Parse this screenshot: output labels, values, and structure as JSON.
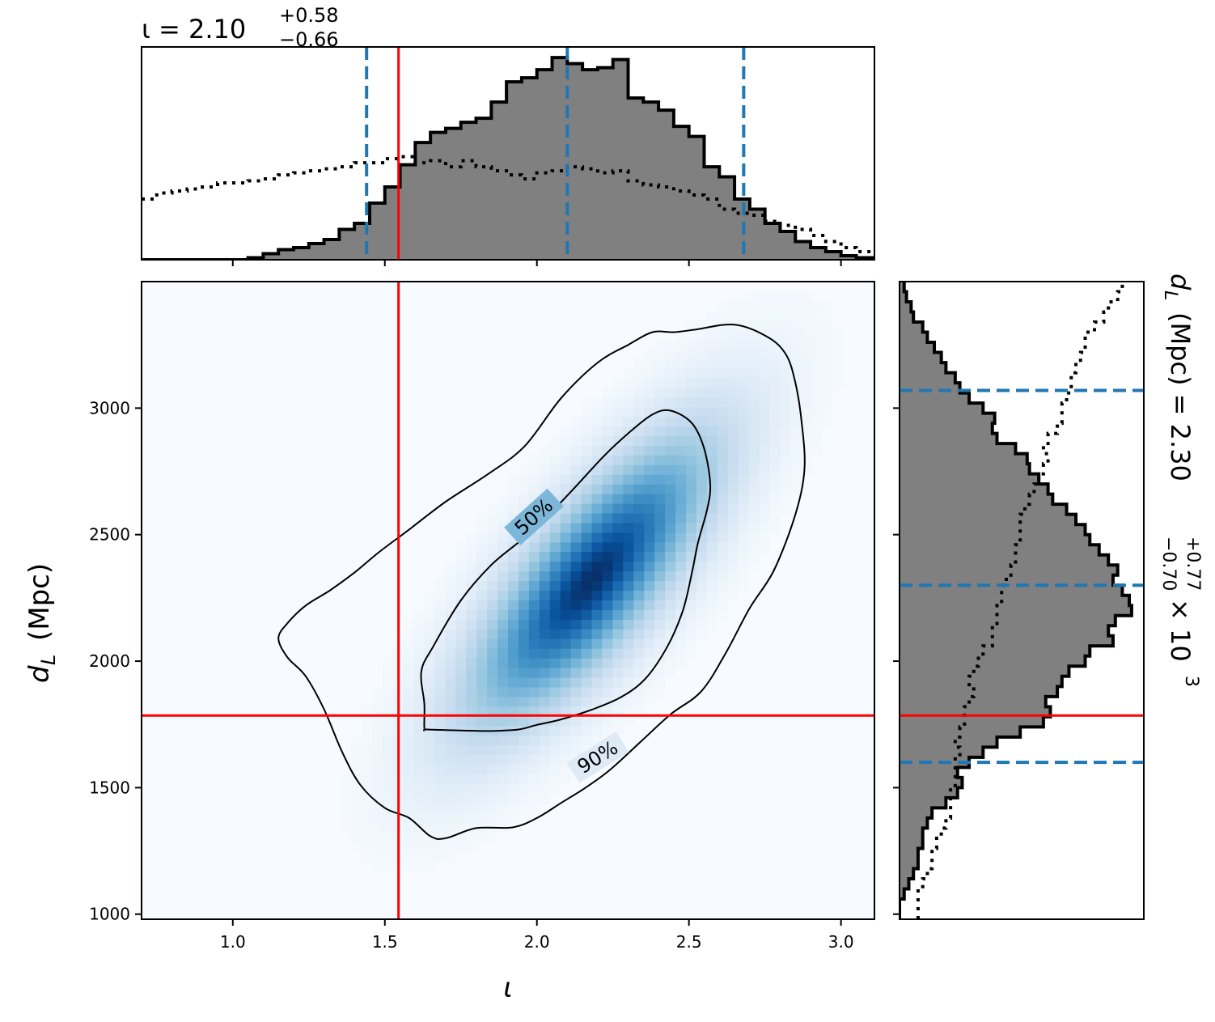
{
  "chart_data": {
    "type": "corner",
    "colors": {
      "posterior_fill": "#808080",
      "posterior_edge": "#000000",
      "prior_line": "#000000",
      "quantile_line": "#1f77b4",
      "injection_line": "#ff0000",
      "density_cmap_low": "#f7fbff",
      "density_cmap_high": "#08306b",
      "contour_line": "#000000"
    },
    "parameters": {
      "iota": {
        "symbol": "ι",
        "median": "2.10",
        "plus": "+0.58",
        "minus": "−0.66",
        "injection": 1.545,
        "quantiles": [
          1.44,
          2.1,
          2.68
        ],
        "range": [
          0.7,
          3.11
        ],
        "ticks": [
          1.0,
          1.5,
          2.0,
          2.5,
          3.0
        ],
        "tick_labels": [
          "1.0",
          "1.5",
          "2.0",
          "2.5",
          "3.0"
        ],
        "title_prefix": "ι = 2.10",
        "xlabel": "ι"
      },
      "dL": {
        "median": "2.30",
        "plus": "+0.77",
        "minus": "−0.70",
        "injection": 1785,
        "quantiles": [
          1600,
          2300,
          3070
        ],
        "range": [
          980,
          3500
        ],
        "ticks": [
          1000,
          1500,
          2000,
          2500,
          3000
        ],
        "tick_labels": [
          "1000",
          "1500",
          "2000",
          "2500",
          "3000"
        ],
        "ylabel": "(Mpc)",
        "ylabel_symbol_d": "d",
        "ylabel_symbol_sub": "L",
        "title_prefix": "(Mpc) = 2.30",
        "title_suffix": "× 10",
        "title_exp": "3"
      }
    },
    "iota_hist": {
      "edges": [
        0.7,
        0.75,
        0.8,
        0.85,
        0.9,
        0.95,
        1.0,
        1.05,
        1.1,
        1.15,
        1.2,
        1.25,
        1.3,
        1.35,
        1.4,
        1.45,
        1.5,
        1.55,
        1.6,
        1.65,
        1.7,
        1.75,
        1.8,
        1.85,
        1.9,
        1.95,
        2.0,
        2.05,
        2.1,
        2.15,
        2.2,
        2.25,
        2.3,
        2.35,
        2.4,
        2.45,
        2.5,
        2.55,
        2.6,
        2.65,
        2.7,
        2.75,
        2.8,
        2.85,
        2.9,
        2.95,
        3.0,
        3.05,
        3.11
      ],
      "posterior": [
        0,
        0,
        0,
        0,
        0,
        0,
        0,
        0.01,
        0.03,
        0.05,
        0.06,
        0.08,
        0.1,
        0.15,
        0.18,
        0.28,
        0.36,
        0.47,
        0.58,
        0.63,
        0.65,
        0.68,
        0.7,
        0.78,
        0.88,
        0.9,
        0.94,
        1.0,
        0.97,
        0.94,
        0.95,
        0.99,
        0.8,
        0.78,
        0.74,
        0.66,
        0.61,
        0.46,
        0.41,
        0.3,
        0.25,
        0.18,
        0.14,
        0.09,
        0.06,
        0.04,
        0.02,
        0.01
      ],
      "prior": [
        0.3,
        0.33,
        0.34,
        0.35,
        0.36,
        0.38,
        0.38,
        0.39,
        0.4,
        0.42,
        0.43,
        0.44,
        0.45,
        0.46,
        0.48,
        0.48,
        0.5,
        0.51,
        0.48,
        0.49,
        0.46,
        0.49,
        0.46,
        0.44,
        0.42,
        0.4,
        0.43,
        0.44,
        0.46,
        0.45,
        0.43,
        0.44,
        0.39,
        0.37,
        0.36,
        0.34,
        0.32,
        0.3,
        0.25,
        0.23,
        0.22,
        0.19,
        0.17,
        0.15,
        0.12,
        0.09,
        0.06,
        0.04
      ]
    },
    "dL_hist": {
      "edges": [
        980,
        1020,
        1060,
        1100,
        1140,
        1180,
        1220,
        1260,
        1300,
        1340,
        1380,
        1420,
        1460,
        1500,
        1540,
        1580,
        1620,
        1660,
        1700,
        1740,
        1780,
        1820,
        1860,
        1900,
        1940,
        1980,
        2020,
        2060,
        2100,
        2140,
        2180,
        2220,
        2260,
        2300,
        2340,
        2380,
        2420,
        2460,
        2500,
        2540,
        2580,
        2620,
        2660,
        2700,
        2740,
        2780,
        2820,
        2860,
        2900,
        2940,
        2980,
        3020,
        3060,
        3100,
        3140,
        3180,
        3220,
        3260,
        3300,
        3340,
        3380,
        3420,
        3460,
        3500
      ],
      "posterior": [
        0,
        0,
        0.02,
        0.04,
        0.06,
        0.08,
        0.08,
        0.1,
        0.1,
        0.12,
        0.14,
        0.2,
        0.25,
        0.27,
        0.25,
        0.3,
        0.36,
        0.42,
        0.52,
        0.62,
        0.65,
        0.63,
        0.68,
        0.7,
        0.73,
        0.8,
        0.82,
        0.92,
        0.9,
        0.93,
        1.0,
        0.99,
        0.96,
        0.92,
        0.94,
        0.9,
        0.86,
        0.82,
        0.8,
        0.76,
        0.72,
        0.66,
        0.64,
        0.6,
        0.56,
        0.55,
        0.5,
        0.42,
        0.4,
        0.41,
        0.36,
        0.3,
        0.26,
        0.24,
        0.2,
        0.18,
        0.15,
        0.12,
        0.1,
        0.06,
        0.05,
        0.03,
        0.02
      ],
      "prior": [
        0.08,
        0.08,
        0.08,
        0.1,
        0.12,
        0.14,
        0.14,
        0.16,
        0.18,
        0.2,
        0.22,
        0.22,
        0.22,
        0.24,
        0.24,
        0.24,
        0.26,
        0.24,
        0.26,
        0.28,
        0.28,
        0.3,
        0.32,
        0.3,
        0.32,
        0.34,
        0.36,
        0.4,
        0.4,
        0.42,
        0.42,
        0.44,
        0.44,
        0.46,
        0.48,
        0.5,
        0.5,
        0.52,
        0.52,
        0.52,
        0.54,
        0.56,
        0.58,
        0.6,
        0.62,
        0.64,
        0.62,
        0.64,
        0.68,
        0.7,
        0.7,
        0.72,
        0.74,
        0.74,
        0.76,
        0.78,
        0.8,
        0.8,
        0.84,
        0.88,
        0.9,
        0.94,
        0.96
      ]
    },
    "density": {
      "peak_iota": 2.18,
      "peak_dL": 2320,
      "sigma_iota": 0.27,
      "sigma_dL": 380,
      "correlation": 0.78
    },
    "contours": [
      {
        "label": "50%",
        "label_at": [
          1.99,
          2570
        ],
        "label_angle": -42,
        "points": [
          [
            1.63,
            1735
          ],
          [
            1.64,
            1730
          ],
          [
            1.75,
            1726
          ],
          [
            1.85,
            1724
          ],
          [
            1.94,
            1730
          ],
          [
            2.0,
            1748
          ],
          [
            2.08,
            1770
          ],
          [
            2.18,
            1808
          ],
          [
            2.28,
            1860
          ],
          [
            2.36,
            1935
          ],
          [
            2.43,
            2060
          ],
          [
            2.48,
            2200
          ],
          [
            2.51,
            2350
          ],
          [
            2.53,
            2470
          ],
          [
            2.56,
            2600
          ],
          [
            2.57,
            2700
          ],
          [
            2.55,
            2840
          ],
          [
            2.51,
            2940
          ],
          [
            2.44,
            2990
          ],
          [
            2.38,
            2975
          ],
          [
            2.3,
            2900
          ],
          [
            2.22,
            2810
          ],
          [
            2.12,
            2680
          ],
          [
            2.04,
            2580
          ],
          [
            1.95,
            2480
          ],
          [
            1.85,
            2380
          ],
          [
            1.75,
            2240
          ],
          [
            1.66,
            2060
          ],
          [
            1.62,
            1960
          ],
          [
            1.63,
            1830
          ]
        ]
      },
      {
        "label": "90%",
        "label_at": [
          2.2,
          1620
        ],
        "label_angle": -32,
        "points": [
          [
            1.15,
            2090
          ],
          [
            1.18,
            2015
          ],
          [
            1.24,
            1940
          ],
          [
            1.3,
            1810
          ],
          [
            1.36,
            1640
          ],
          [
            1.42,
            1510
          ],
          [
            1.5,
            1420
          ],
          [
            1.58,
            1380
          ],
          [
            1.65,
            1308
          ],
          [
            1.7,
            1300
          ],
          [
            1.8,
            1340
          ],
          [
            1.92,
            1343
          ],
          [
            2.0,
            1380
          ],
          [
            2.08,
            1440
          ],
          [
            2.16,
            1500
          ],
          [
            2.24,
            1570
          ],
          [
            2.34,
            1680
          ],
          [
            2.44,
            1790
          ],
          [
            2.54,
            1880
          ],
          [
            2.62,
            2030
          ],
          [
            2.7,
            2210
          ],
          [
            2.78,
            2360
          ],
          [
            2.85,
            2580
          ],
          [
            2.88,
            2760
          ],
          [
            2.87,
            2950
          ],
          [
            2.85,
            3100
          ],
          [
            2.82,
            3210
          ],
          [
            2.76,
            3280
          ],
          [
            2.65,
            3330
          ],
          [
            2.52,
            3310
          ],
          [
            2.45,
            3300
          ],
          [
            2.38,
            3300
          ],
          [
            2.3,
            3250
          ],
          [
            2.2,
            3180
          ],
          [
            2.08,
            3040
          ],
          [
            1.96,
            2850
          ],
          [
            1.84,
            2740
          ],
          [
            1.7,
            2630
          ],
          [
            1.58,
            2520
          ],
          [
            1.48,
            2430
          ],
          [
            1.4,
            2350
          ],
          [
            1.32,
            2280
          ],
          [
            1.24,
            2220
          ],
          [
            1.18,
            2150
          ]
        ]
      }
    ]
  }
}
